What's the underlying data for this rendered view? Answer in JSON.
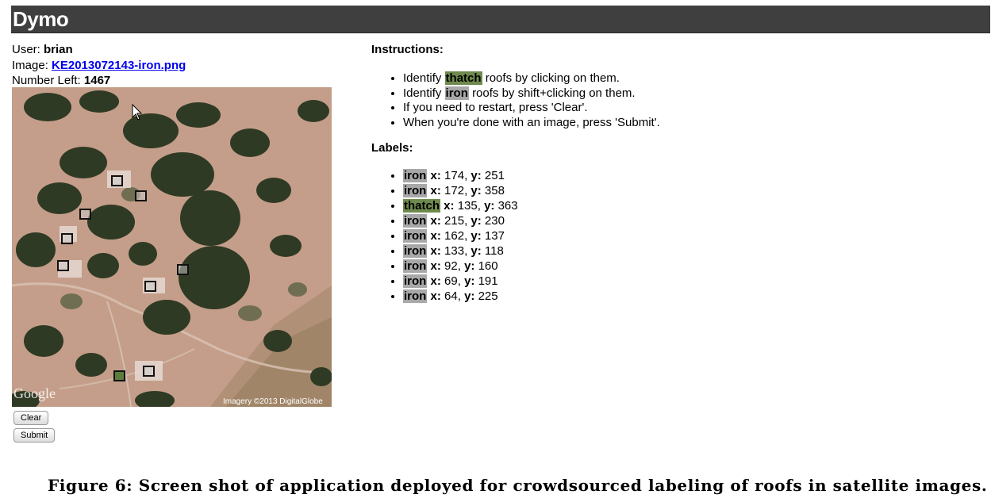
{
  "app": {
    "title": "Dymo"
  },
  "meta": {
    "user_label": "User:",
    "user_value": "brian",
    "image_label": "Image:",
    "image_value": "KE2013072143-iron.png",
    "left_label": "Number Left:",
    "left_value": "1467"
  },
  "map": {
    "watermark": "Google",
    "credit": "Imagery ©2013 DigitalGlobe",
    "marker_colors": {
      "iron": "#cccccc",
      "thatch": "#5e7d3b"
    }
  },
  "buttons": {
    "clear": "Clear",
    "submit": "Submit"
  },
  "instructions": {
    "heading": "Instructions:",
    "items": [
      {
        "pre": "Identify",
        "tag": "thatch",
        "post": "roofs by clicking on them."
      },
      {
        "pre": "Identify",
        "tag": "iron",
        "post": "roofs by shift+clicking on them."
      },
      {
        "text": "If you need to restart, press 'Clear'."
      },
      {
        "text": "When you're done with an image, press 'Submit'."
      }
    ]
  },
  "labels": {
    "heading": "Labels:",
    "x_label": "x:",
    "y_label": "y:",
    "items": [
      {
        "type": "iron",
        "x": "174",
        "y": "251"
      },
      {
        "type": "iron",
        "x": "172",
        "y": "358"
      },
      {
        "type": "thatch",
        "x": "135",
        "y": "363"
      },
      {
        "type": "iron",
        "x": "215",
        "y": "230"
      },
      {
        "type": "iron",
        "x": "162",
        "y": "137"
      },
      {
        "type": "iron",
        "x": "133",
        "y": "118"
      },
      {
        "type": "iron",
        "x": "92",
        "y": "160"
      },
      {
        "type": "iron",
        "x": "69",
        "y": "191"
      },
      {
        "type": "iron",
        "x": "64",
        "y": "225"
      }
    ]
  },
  "caption": "Figure 6: Screen shot of application deployed for crowdsourced labeling of roofs in satellite images."
}
